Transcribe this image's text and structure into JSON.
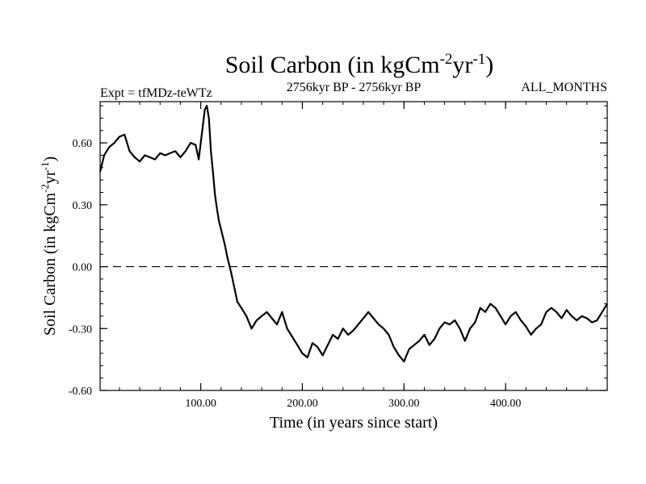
{
  "chart_data": {
    "type": "line",
    "title": "Soil Carbon (in kgCm",
    "title_sup1": "-2",
    "title_mid": "yr",
    "title_sup2": "-1",
    "title_end": ")",
    "left_note": "Expt = tfMDz-teWTz",
    "center_note": "2756kyr BP - 2756kyr BP",
    "right_note": "ALL_MONTHS",
    "xlabel": "Time (in years since start)",
    "ylabel": "Soil Carbon (in kgCm",
    "ylabel_sup1": "-2",
    "ylabel_mid": "yr",
    "ylabel_sup2": "-1",
    "ylabel_end": ")",
    "xlim": [
      1,
      500
    ],
    "ylim": [
      -0.6,
      0.8
    ],
    "x_ticks": [
      100,
      200,
      300,
      400
    ],
    "x_tick_labels": [
      "100.00",
      "200.00",
      "300.00",
      "400.00"
    ],
    "y_ticks": [
      -0.6,
      -0.3,
      0.0,
      0.3,
      0.6
    ],
    "y_tick_labels": [
      "-0.60",
      "-0.30",
      "0.00",
      "0.30",
      "0.60"
    ],
    "reference_line": {
      "y": 0.0,
      "style": "dashed"
    },
    "series": [
      {
        "name": "Soil Carbon",
        "x": [
          1,
          5,
          10,
          15,
          20,
          25,
          30,
          35,
          40,
          45,
          50,
          55,
          60,
          65,
          70,
          75,
          80,
          85,
          90,
          95,
          98,
          100,
          102,
          104,
          106,
          108,
          110,
          112,
          114,
          116,
          118,
          120,
          122,
          124,
          126,
          128,
          130,
          133,
          136,
          140,
          145,
          150,
          155,
          160,
          165,
          170,
          175,
          180,
          185,
          190,
          195,
          200,
          205,
          210,
          215,
          220,
          225,
          230,
          235,
          240,
          245,
          250,
          255,
          260,
          265,
          270,
          275,
          280,
          285,
          290,
          295,
          300,
          305,
          310,
          315,
          320,
          325,
          330,
          335,
          340,
          345,
          350,
          355,
          360,
          365,
          370,
          375,
          380,
          385,
          390,
          395,
          400,
          405,
          410,
          415,
          420,
          425,
          430,
          435,
          440,
          445,
          450,
          455,
          460,
          465,
          470,
          475,
          480,
          485,
          490,
          495,
          500
        ],
        "values": [
          0.46,
          0.54,
          0.58,
          0.6,
          0.63,
          0.64,
          0.56,
          0.53,
          0.51,
          0.54,
          0.53,
          0.52,
          0.55,
          0.54,
          0.55,
          0.56,
          0.53,
          0.56,
          0.6,
          0.59,
          0.52,
          0.6,
          0.68,
          0.76,
          0.78,
          0.72,
          0.56,
          0.46,
          0.35,
          0.28,
          0.22,
          0.18,
          0.14,
          0.1,
          0.05,
          0.01,
          -0.03,
          -0.1,
          -0.17,
          -0.2,
          -0.24,
          -0.3,
          -0.26,
          -0.24,
          -0.22,
          -0.25,
          -0.28,
          -0.22,
          -0.3,
          -0.34,
          -0.38,
          -0.42,
          -0.44,
          -0.37,
          -0.39,
          -0.43,
          -0.38,
          -0.33,
          -0.35,
          -0.3,
          -0.33,
          -0.31,
          -0.28,
          -0.25,
          -0.22,
          -0.25,
          -0.28,
          -0.3,
          -0.33,
          -0.39,
          -0.43,
          -0.46,
          -0.4,
          -0.38,
          -0.36,
          -0.33,
          -0.38,
          -0.35,
          -0.3,
          -0.27,
          -0.28,
          -0.26,
          -0.3,
          -0.36,
          -0.3,
          -0.27,
          -0.2,
          -0.22,
          -0.18,
          -0.2,
          -0.24,
          -0.28,
          -0.24,
          -0.22,
          -0.26,
          -0.29,
          -0.33,
          -0.3,
          -0.28,
          -0.22,
          -0.2,
          -0.22,
          -0.25,
          -0.21,
          -0.24,
          -0.26,
          -0.24,
          -0.25,
          -0.27,
          -0.26,
          -0.22,
          -0.18
        ]
      }
    ]
  }
}
